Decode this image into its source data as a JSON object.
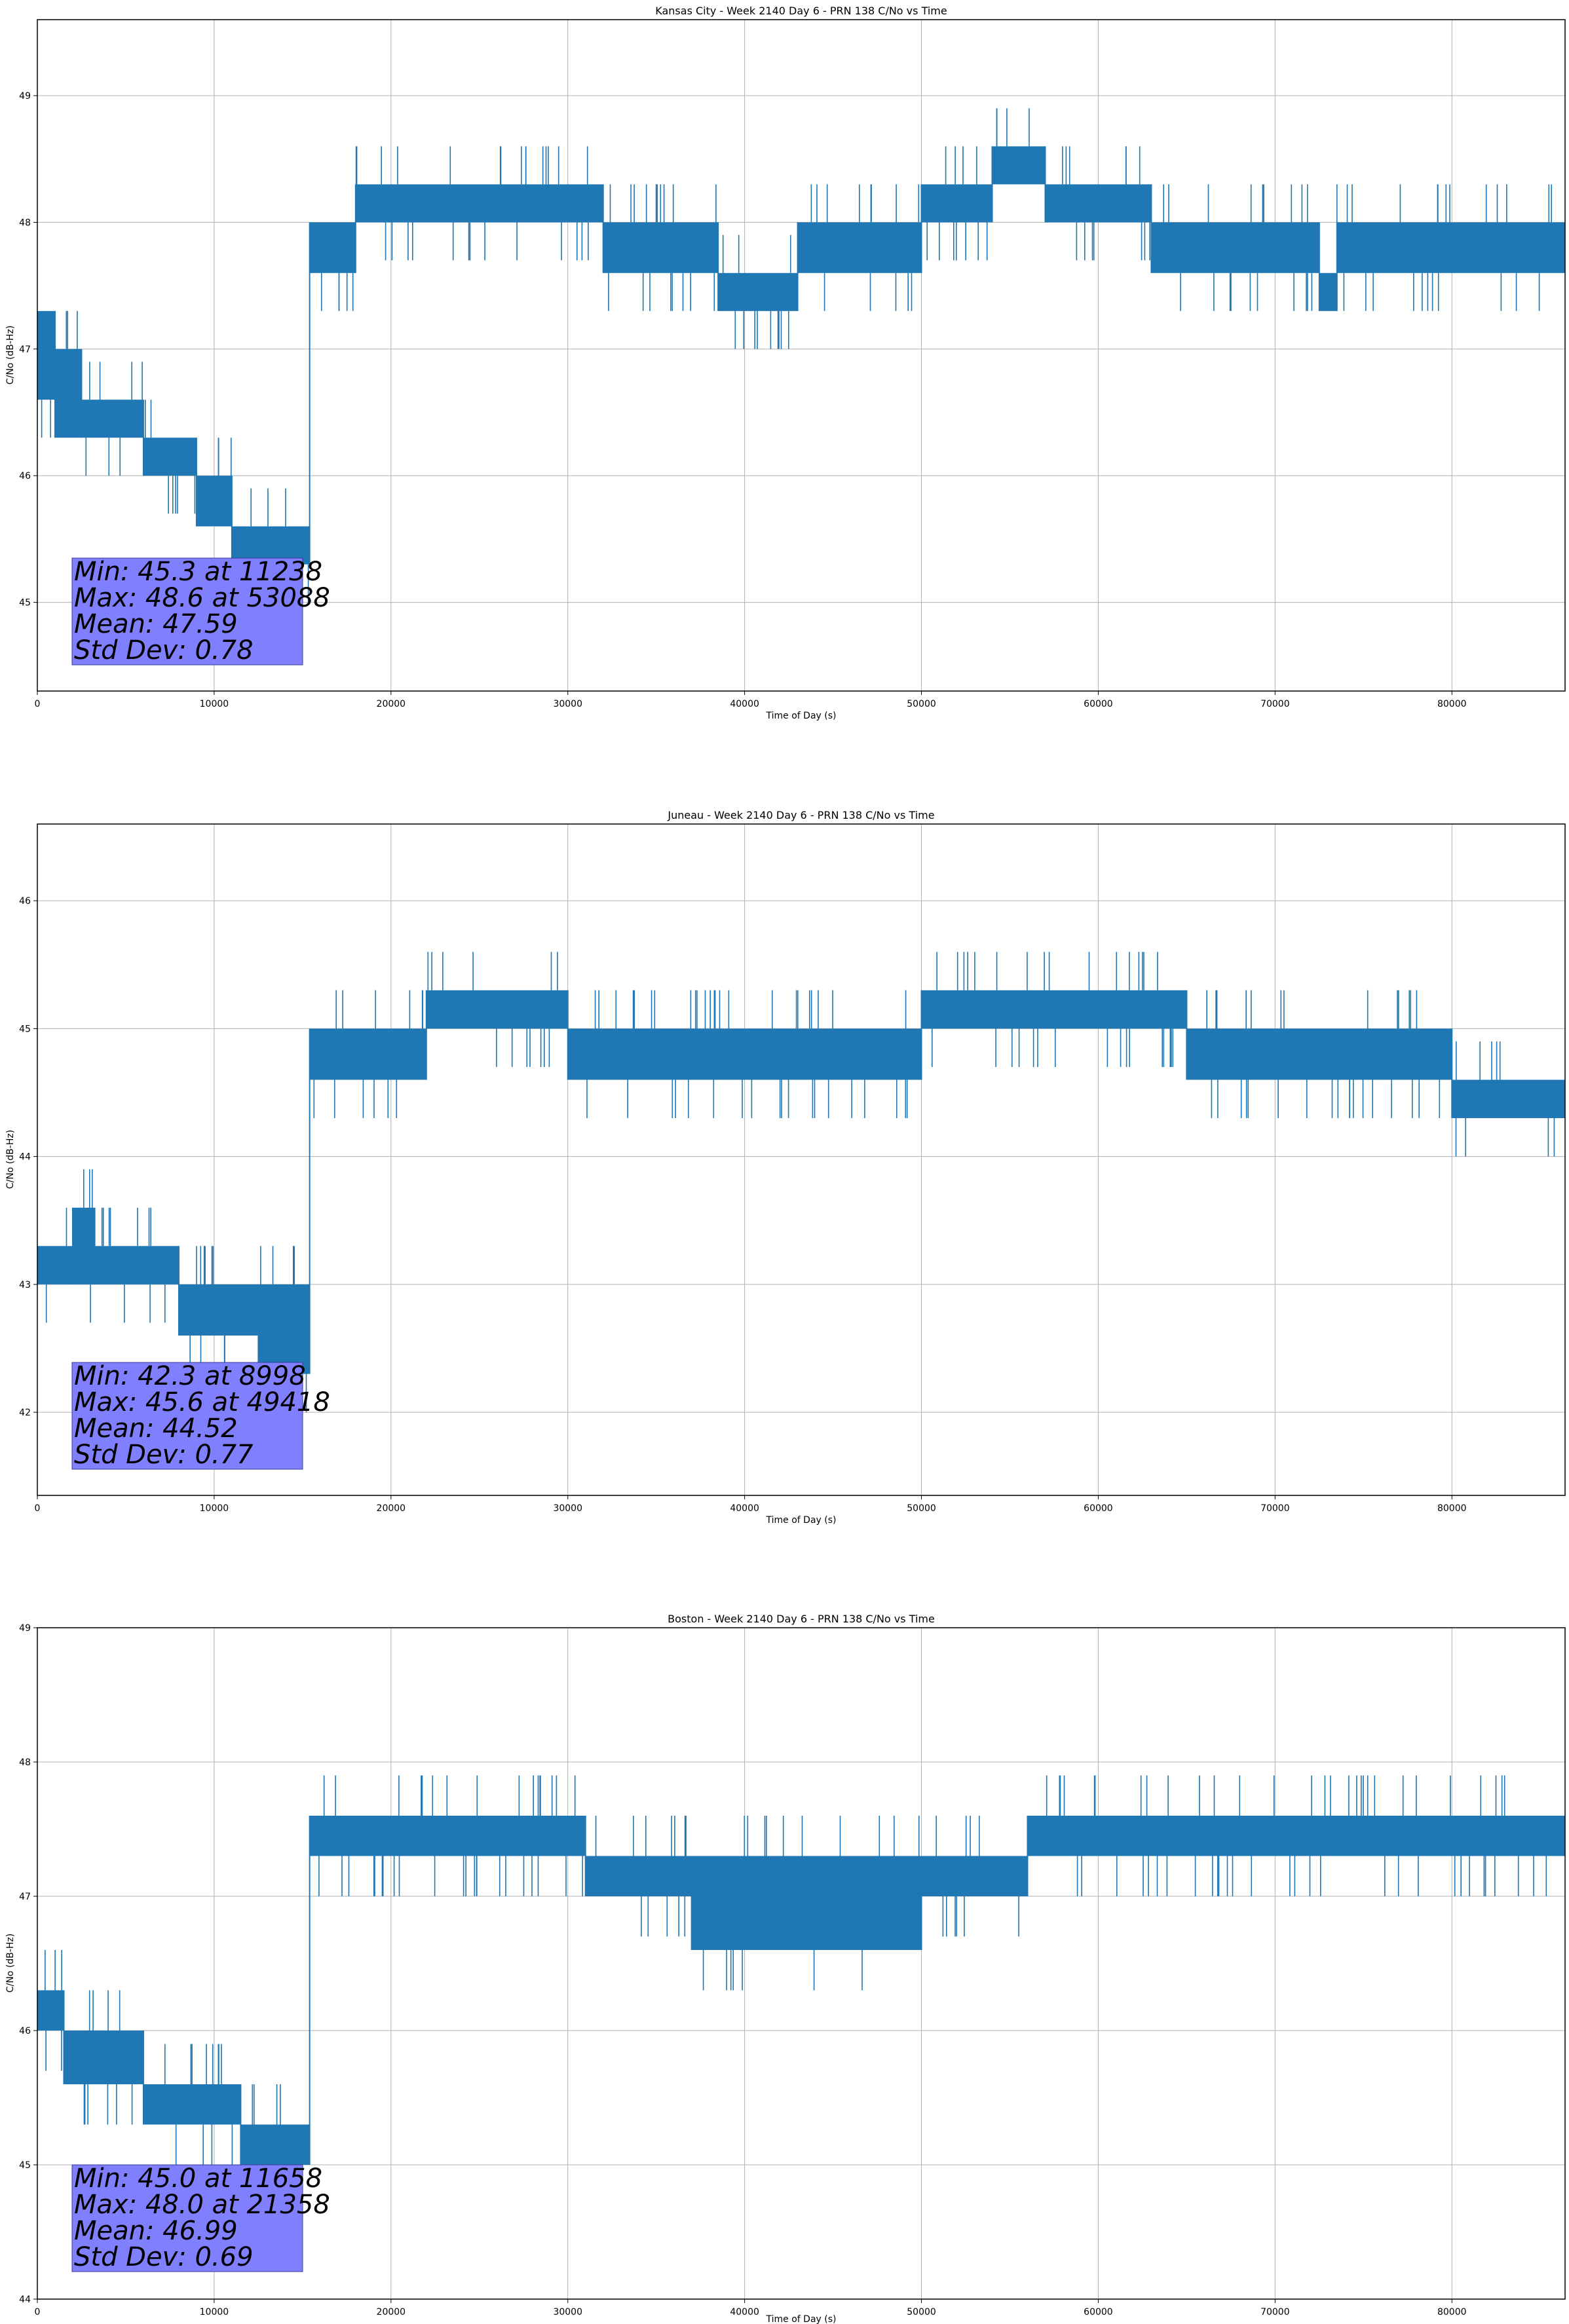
{
  "chart_data": [
    {
      "type": "line",
      "title": "Kansas City - Week 2140 Day 6 - PRN 138 C/No vs Time",
      "xlabel": "Time of Day (s)",
      "ylabel": "C/No (dB-Hz)",
      "xlim": [
        0,
        86400
      ],
      "ylim": [
        44.3,
        49.6
      ],
      "xticks": [
        0,
        10000,
        20000,
        30000,
        40000,
        50000,
        60000,
        70000,
        80000
      ],
      "yticks": [
        45,
        46,
        47,
        48,
        49
      ],
      "grid": true,
      "color": "#1f77b4",
      "stats": {
        "min": "Min: 45.3 at 11238",
        "max": "Max: 48.6 at 53088",
        "mean": "Mean: 47.59",
        "std": "Std Dev: 0.78"
      },
      "segments": [
        {
          "x0": 0,
          "x1": 1000,
          "lo": 46.6,
          "hi": 47.3
        },
        {
          "x0": 1000,
          "x1": 2500,
          "lo": 46.3,
          "hi": 47.0
        },
        {
          "x0": 2500,
          "x1": 6000,
          "lo": 46.3,
          "hi": 46.6
        },
        {
          "x0": 6000,
          "x1": 9000,
          "lo": 46.0,
          "hi": 46.3
        },
        {
          "x0": 9000,
          "x1": 11000,
          "lo": 45.6,
          "hi": 46.0
        },
        {
          "x0": 11000,
          "x1": 15400,
          "lo": 45.3,
          "hi": 45.6
        },
        {
          "x0": 15400,
          "x1": 18000,
          "lo": 47.6,
          "hi": 48.0
        },
        {
          "x0": 18000,
          "x1": 32000,
          "lo": 48.0,
          "hi": 48.3
        },
        {
          "x0": 32000,
          "x1": 38500,
          "lo": 47.6,
          "hi": 48.0
        },
        {
          "x0": 38500,
          "x1": 43000,
          "lo": 47.3,
          "hi": 47.6
        },
        {
          "x0": 43000,
          "x1": 50000,
          "lo": 47.6,
          "hi": 48.0
        },
        {
          "x0": 50000,
          "x1": 54000,
          "lo": 48.0,
          "hi": 48.3
        },
        {
          "x0": 54000,
          "x1": 57000,
          "lo": 48.3,
          "hi": 48.6
        },
        {
          "x0": 57000,
          "x1": 63000,
          "lo": 48.0,
          "hi": 48.3
        },
        {
          "x0": 63000,
          "x1": 72500,
          "lo": 47.6,
          "hi": 48.0
        },
        {
          "x0": 72500,
          "x1": 73500,
          "lo": 47.3,
          "hi": 47.6
        },
        {
          "x0": 73500,
          "x1": 86400,
          "lo": 47.6,
          "hi": 48.0
        }
      ]
    },
    {
      "type": "line",
      "title": "Juneau - Week 2140 Day 6 - PRN 138 C/No vs Time",
      "xlabel": "Time of Day (s)",
      "ylabel": "C/No (dB-Hz)",
      "xlim": [
        0,
        86400
      ],
      "ylim": [
        41.35,
        46.6
      ],
      "xticks": [
        0,
        10000,
        20000,
        30000,
        40000,
        50000,
        60000,
        70000,
        80000
      ],
      "yticks": [
        42,
        43,
        44,
        45,
        46
      ],
      "grid": true,
      "color": "#1f77b4",
      "stats": {
        "min": "Min: 42.3 at 8998",
        "max": "Max: 45.6 at 49418",
        "mean": "Mean: 44.52",
        "std": "Std Dev: 0.77"
      },
      "segments": [
        {
          "x0": 0,
          "x1": 2000,
          "lo": 43.0,
          "hi": 43.3
        },
        {
          "x0": 2000,
          "x1": 3200,
          "lo": 43.0,
          "hi": 43.6
        },
        {
          "x0": 3200,
          "x1": 8000,
          "lo": 43.0,
          "hi": 43.3
        },
        {
          "x0": 8000,
          "x1": 12500,
          "lo": 42.6,
          "hi": 43.0
        },
        {
          "x0": 12500,
          "x1": 15400,
          "lo": 42.3,
          "hi": 43.0
        },
        {
          "x0": 15400,
          "x1": 22000,
          "lo": 44.6,
          "hi": 45.0
        },
        {
          "x0": 22000,
          "x1": 30000,
          "lo": 45.0,
          "hi": 45.3
        },
        {
          "x0": 30000,
          "x1": 47000,
          "lo": 44.6,
          "hi": 45.0
        },
        {
          "x0": 47000,
          "x1": 50000,
          "lo": 44.6,
          "hi": 45.0
        },
        {
          "x0": 50000,
          "x1": 65000,
          "lo": 45.0,
          "hi": 45.3
        },
        {
          "x0": 65000,
          "x1": 80000,
          "lo": 44.6,
          "hi": 45.0
        },
        {
          "x0": 80000,
          "x1": 86400,
          "lo": 44.3,
          "hi": 44.6
        }
      ]
    },
    {
      "type": "line",
      "title": "Boston - Week 2140 Day 6 - PRN 138 C/No vs Time",
      "xlabel": "Time of Day (s)",
      "ylabel": "C/No (dB-Hz)",
      "xlim": [
        0,
        86400
      ],
      "ylim": [
        44.0,
        49.0
      ],
      "xticks": [
        0,
        10000,
        20000,
        30000,
        40000,
        50000,
        60000,
        70000,
        80000
      ],
      "yticks": [
        44,
        45,
        46,
        47,
        48,
        49
      ],
      "grid": true,
      "color": "#1f77b4",
      "stats": {
        "min": "Min: 45.0 at 11658",
        "max": "Max: 48.0 at 21358",
        "mean": "Mean: 46.99",
        "std": "Std Dev: 0.69"
      },
      "segments": [
        {
          "x0": 0,
          "x1": 1500,
          "lo": 46.0,
          "hi": 46.3
        },
        {
          "x0": 1500,
          "x1": 6000,
          "lo": 45.6,
          "hi": 46.0
        },
        {
          "x0": 6000,
          "x1": 11500,
          "lo": 45.3,
          "hi": 45.6
        },
        {
          "x0": 11500,
          "x1": 15400,
          "lo": 45.0,
          "hi": 45.3
        },
        {
          "x0": 15400,
          "x1": 31000,
          "lo": 47.3,
          "hi": 47.6
        },
        {
          "x0": 31000,
          "x1": 37000,
          "lo": 47.0,
          "hi": 47.3
        },
        {
          "x0": 37000,
          "x1": 50000,
          "lo": 46.6,
          "hi": 47.3
        },
        {
          "x0": 50000,
          "x1": 56000,
          "lo": 47.0,
          "hi": 47.3
        },
        {
          "x0": 56000,
          "x1": 86400,
          "lo": 47.3,
          "hi": 47.6
        }
      ]
    }
  ]
}
